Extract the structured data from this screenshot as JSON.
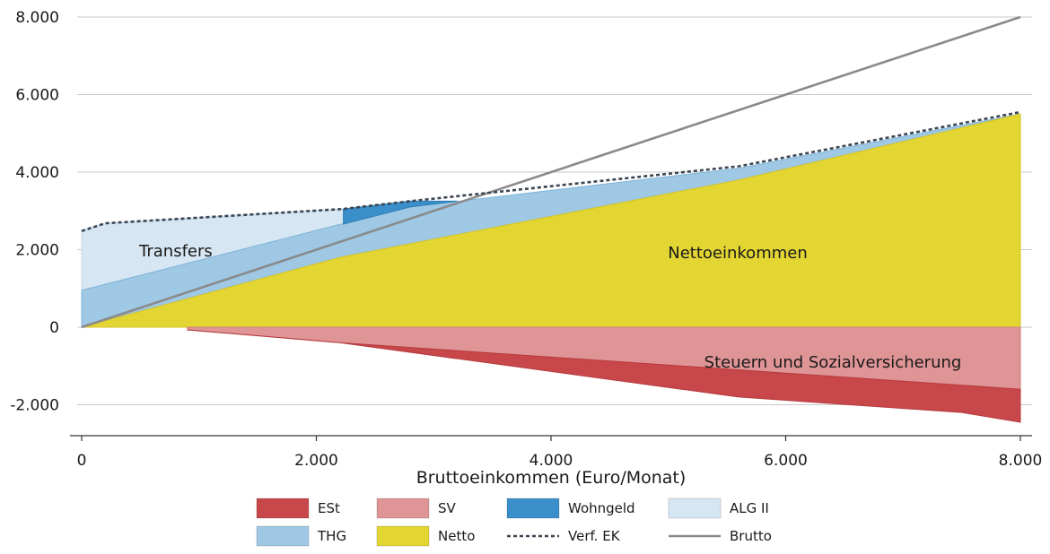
{
  "chart_data": {
    "type": "area",
    "xlabel": "Bruttoeinkommen (Euro/Monat)",
    "ylabel": "",
    "xlim": [
      0,
      8000
    ],
    "ylim": [
      -2500,
      8000
    ],
    "x_ticks": [
      "0",
      "2.000",
      "4.000",
      "6.000",
      "8.000"
    ],
    "y_ticks": [
      "8.000",
      "6.000",
      "4.000",
      "2.000",
      "0",
      "-2.000"
    ],
    "grid": "horizontal",
    "legend_position": "bottom",
    "annotations": [
      "Transfers",
      "Nettoeinkommen",
      "Steuern und Sozialversicherung"
    ],
    "colors": {
      "ESt": "#c8474a",
      "SV": "#df9496",
      "Wohngeld": "#3a8fcb",
      "ALG II": "#d6e6f2",
      "THG": "#9ec8e4",
      "Netto": "#e3d532",
      "Verf. EK": "#3c4652",
      "Brutto": "#8a8a8a"
    },
    "legend": [
      "ESt",
      "SV",
      "Wohngeld",
      "ALG II",
      "THG",
      "Netto",
      "Verf. EK",
      "Brutto"
    ],
    "series": [
      {
        "name": "Netto",
        "x": [
          0,
          2200,
          5600,
          8000
        ],
        "values": [
          0,
          1800,
          3800,
          5500
        ]
      },
      {
        "name": "THG",
        "x": [
          0,
          2200,
          2800,
          5600,
          8000
        ],
        "values": [
          950,
          2650,
          3100,
          4100,
          5500
        ]
      },
      {
        "name": "Wohngeld",
        "x": [
          2230,
          2800,
          3200
        ],
        "values": [
          3050,
          3250,
          3250
        ]
      },
      {
        "name": "ALG II",
        "x": [
          0,
          200,
          2230
        ],
        "values": [
          2500,
          2680,
          3050
        ]
      },
      {
        "name": "Verf. EK",
        "x": [
          0,
          200,
          2230,
          2800,
          5600,
          8000
        ],
        "values": [
          2480,
          2680,
          3050,
          3250,
          4150,
          5550
        ]
      },
      {
        "name": "SV",
        "x": [
          900,
          2200,
          5600,
          8000
        ],
        "values": [
          -70,
          -400,
          -1100,
          -1600
        ]
      },
      {
        "name": "ESt",
        "x": [
          900,
          2200,
          5600,
          7500,
          8000
        ],
        "values": [
          -70,
          -400,
          -1800,
          -2200,
          -2450
        ]
      },
      {
        "name": "Brutto",
        "x": [
          0,
          8000
        ],
        "values": [
          0,
          8000
        ]
      }
    ]
  }
}
